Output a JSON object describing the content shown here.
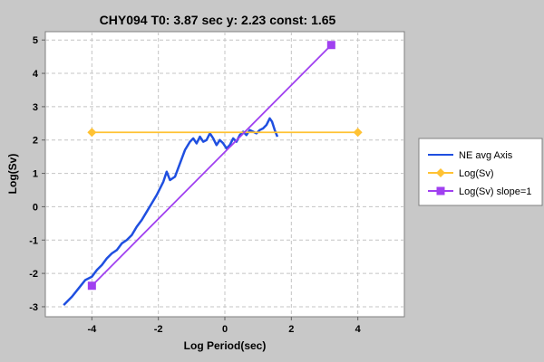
{
  "chart_data": {
    "type": "line",
    "title": "CHY094 T0: 3.87 sec  y: 2.23 const: 1.65",
    "xlabel": "Log Period(sec)",
    "ylabel": "Log(Sv)",
    "xlim": [
      -5.4,
      5.4
    ],
    "ylim": [
      -3.3,
      5.25
    ],
    "xticks": [
      -4,
      -2,
      0,
      2,
      4
    ],
    "yticks": [
      -3,
      -2,
      -1,
      0,
      1,
      2,
      3,
      4,
      5
    ],
    "grid": true,
    "legend_position": "right",
    "series": [
      {
        "name": "NE avg Axis",
        "color": "#1f4fe0",
        "marker": "none",
        "x": [
          -4.85,
          -4.6,
          -4.4,
          -4.2,
          -4.0,
          -3.85,
          -3.7,
          -3.55,
          -3.4,
          -3.25,
          -3.1,
          -2.95,
          -2.8,
          -2.65,
          -2.5,
          -2.35,
          -2.2,
          -2.05,
          -1.95,
          -1.85,
          -1.75,
          -1.65,
          -1.5,
          -1.35,
          -1.2,
          -1.05,
          -0.95,
          -0.85,
          -0.75,
          -0.65,
          -0.55,
          -0.45,
          -0.35,
          -0.25,
          -0.15,
          -0.05,
          0.05,
          0.15,
          0.25,
          0.35,
          0.45,
          0.55,
          0.65,
          0.75,
          0.85,
          0.95,
          1.05,
          1.15,
          1.25,
          1.35,
          1.42,
          1.5,
          1.58
        ],
        "y": [
          -2.95,
          -2.7,
          -2.45,
          -2.2,
          -2.1,
          -1.9,
          -1.75,
          -1.55,
          -1.4,
          -1.3,
          -1.1,
          -1.0,
          -0.85,
          -0.6,
          -0.4,
          -0.15,
          0.1,
          0.35,
          0.55,
          0.75,
          1.05,
          0.8,
          0.9,
          1.3,
          1.7,
          1.95,
          2.05,
          1.9,
          2.1,
          1.95,
          2.0,
          2.2,
          2.05,
          1.85,
          2.0,
          1.9,
          1.75,
          1.85,
          2.05,
          1.95,
          2.15,
          2.25,
          2.15,
          2.3,
          2.25,
          2.2,
          2.3,
          2.35,
          2.45,
          2.65,
          2.55,
          2.3,
          2.1
        ]
      },
      {
        "name": "Log(Sv)",
        "color": "#ffc233",
        "marker": "diamond",
        "x": [
          -4.0,
          4.0
        ],
        "y": [
          2.23,
          2.23
        ]
      },
      {
        "name": "Log(Sv) slope=1",
        "color": "#a040f0",
        "marker": "square",
        "x": [
          -4.0,
          3.2
        ],
        "y": [
          -2.37,
          4.85
        ]
      }
    ]
  }
}
